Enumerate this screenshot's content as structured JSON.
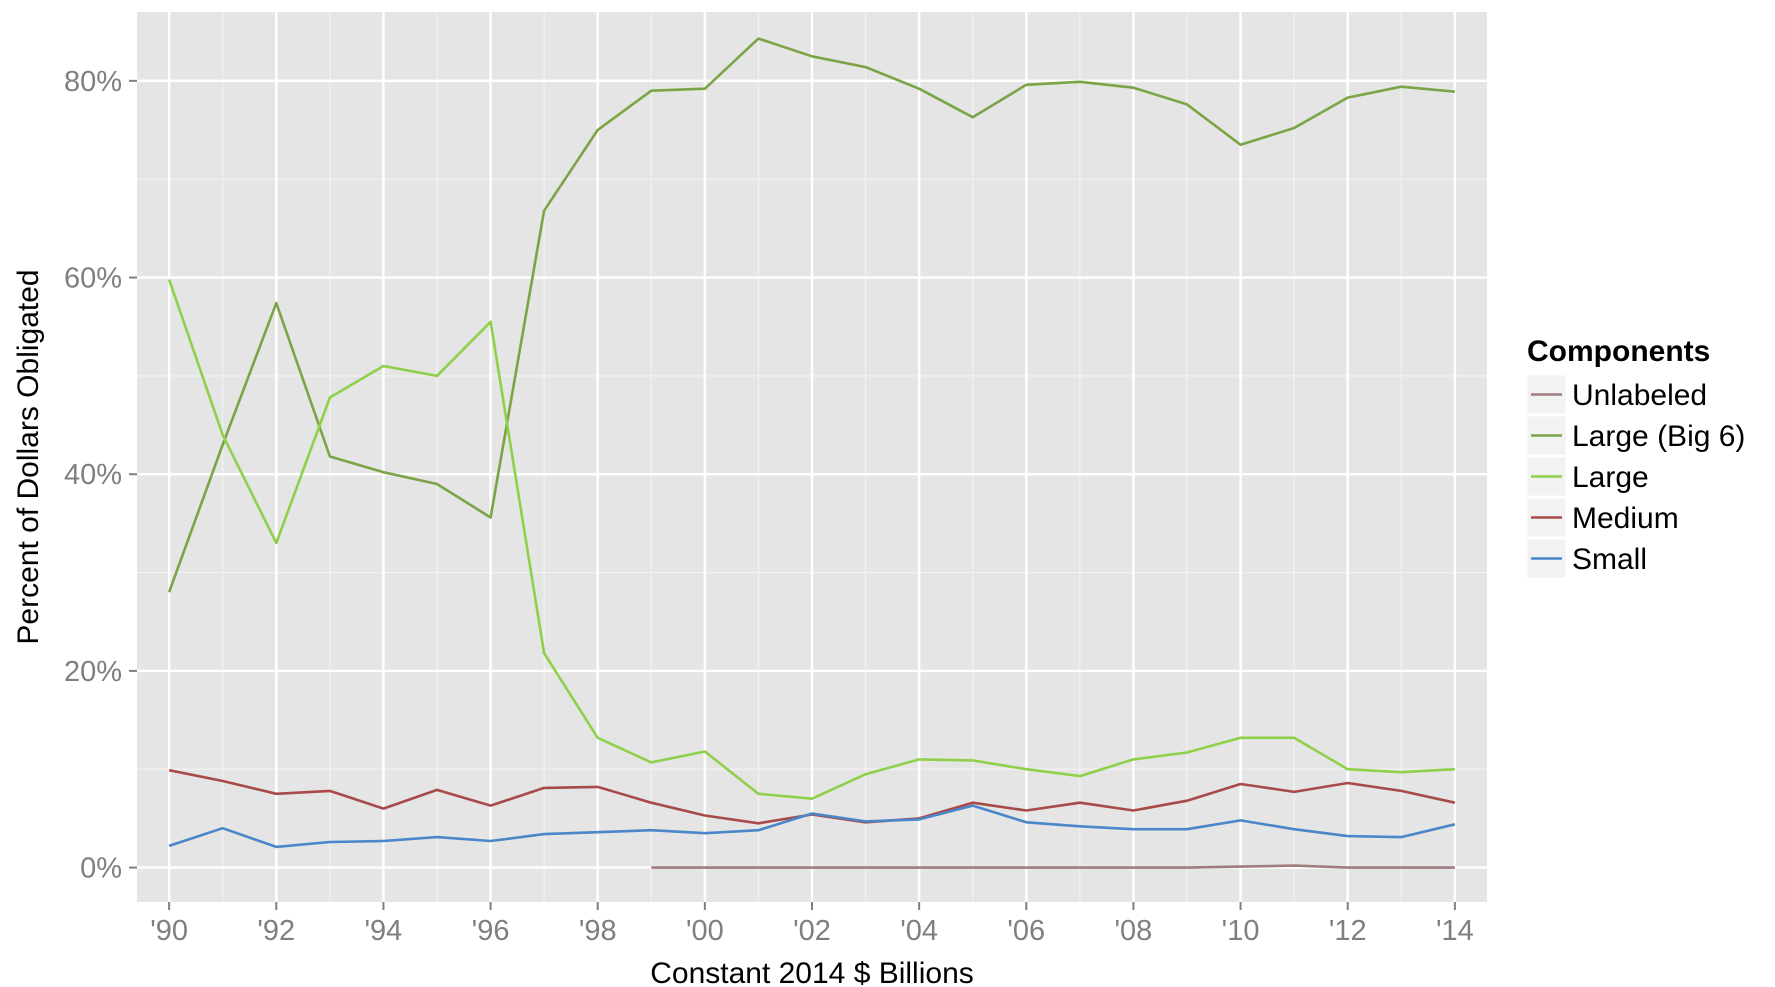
{
  "chart_data": {
    "type": "line",
    "title": "",
    "xlabel": "Constant 2014 $ Billions",
    "ylabel": "Percent of Dollars Obligated",
    "x": [
      1990,
      1991,
      1992,
      1993,
      1994,
      1995,
      1996,
      1997,
      1998,
      1999,
      2000,
      2001,
      2002,
      2003,
      2004,
      2005,
      2006,
      2007,
      2008,
      2009,
      2010,
      2011,
      2012,
      2013,
      2014
    ],
    "xlim": [
      1989.4,
      2014.6
    ],
    "ylim": [
      -0.035,
      0.87
    ],
    "x_ticks": [
      1990,
      1992,
      1994,
      1996,
      1998,
      2000,
      2002,
      2004,
      2006,
      2008,
      2010,
      2012,
      2014
    ],
    "x_tick_labels": [
      "'90",
      "'92",
      "'94",
      "'96",
      "'98",
      "'00",
      "'02",
      "'04",
      "'06",
      "'08",
      "'10",
      "'12",
      "'14"
    ],
    "y_ticks": [
      0,
      0.2,
      0.4,
      0.6,
      0.8
    ],
    "y_tick_labels": [
      "0%",
      "20%",
      "40%",
      "60%",
      "80%"
    ],
    "grid": true,
    "background": "#e5e5e5",
    "legend": {
      "title": "Components",
      "position": "right"
    },
    "series": [
      {
        "name": "Unlabeled",
        "color": "#a07c80",
        "values": [
          null,
          null,
          null,
          null,
          null,
          null,
          null,
          null,
          null,
          0.0,
          0.0,
          0.0,
          0.0,
          0.0,
          0.0,
          0.0,
          0.0,
          0.0,
          0.0,
          0.0,
          0.001,
          0.002,
          0.0,
          0.0,
          0.0
        ]
      },
      {
        "name": "Large (Big 6)",
        "color": "#7ba446",
        "values": [
          0.28,
          0.43,
          0.574,
          0.418,
          0.402,
          0.39,
          0.356,
          0.668,
          0.75,
          0.79,
          0.792,
          0.843,
          0.825,
          0.814,
          0.792,
          0.763,
          0.796,
          0.799,
          0.793,
          0.776,
          0.735,
          0.752,
          0.783,
          0.794,
          0.789
        ]
      },
      {
        "name": "Large",
        "color": "#8fd04a",
        "values": [
          0.598,
          0.44,
          0.33,
          0.478,
          0.51,
          0.5,
          0.555,
          0.218,
          0.132,
          0.107,
          0.118,
          0.075,
          0.07,
          0.095,
          0.11,
          0.109,
          0.1,
          0.093,
          0.11,
          0.117,
          0.132,
          0.132,
          0.1,
          0.097,
          0.1
        ]
      },
      {
        "name": "Medium",
        "color": "#a84a4a",
        "values": [
          0.099,
          0.088,
          0.075,
          0.078,
          0.06,
          0.079,
          0.063,
          0.081,
          0.082,
          0.066,
          0.053,
          0.045,
          0.054,
          0.046,
          0.05,
          0.066,
          0.058,
          0.066,
          0.058,
          0.068,
          0.085,
          0.077,
          0.086,
          0.078,
          0.066
        ]
      },
      {
        "name": "Small",
        "color": "#4a86c8",
        "values": [
          0.022,
          0.04,
          0.021,
          0.026,
          0.027,
          0.031,
          0.027,
          0.034,
          0.036,
          0.038,
          0.035,
          0.038,
          0.055,
          0.047,
          0.049,
          0.063,
          0.046,
          0.042,
          0.039,
          0.039,
          0.048,
          0.039,
          0.032,
          0.031,
          0.044
        ]
      }
    ]
  }
}
